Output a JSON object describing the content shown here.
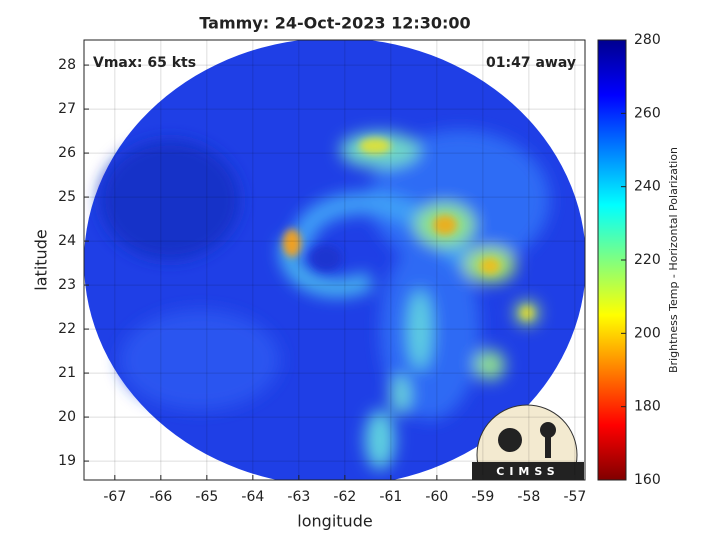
{
  "chart_data": {
    "type": "heatmap",
    "title": "Tammy: 24-Oct-2023 12:30:00",
    "annotations": [
      "Vmax: 65 kts",
      "01:47 away"
    ],
    "x_label": "longitude",
    "y_label": "latitude",
    "xlim": [
      -67.67,
      -56.78
    ],
    "xticks": [
      -67,
      -66,
      -65,
      -64,
      -63,
      -62,
      -61,
      -60,
      -59,
      -58,
      -57
    ],
    "ylim": [
      18.57,
      28.57
    ],
    "yticks": [
      19,
      20,
      21,
      22,
      23,
      24,
      25,
      26,
      27,
      28
    ],
    "grid": true,
    "colorbar": {
      "label": "Brightness Temp - Horizontal Polarization",
      "colormap": "jet",
      "clim": [
        160,
        280
      ],
      "ticks": [
        160,
        180,
        200,
        220,
        240,
        260,
        280
      ]
    },
    "logo": "CIMSS"
  }
}
